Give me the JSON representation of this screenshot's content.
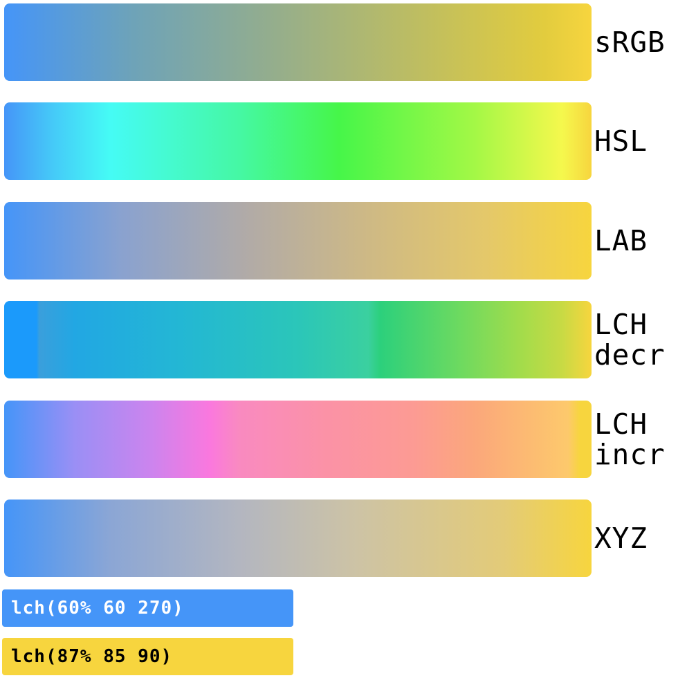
{
  "rows": [
    {
      "label": "sRGB"
    },
    {
      "label": "HSL"
    },
    {
      "label": "LAB"
    },
    {
      "label": "LCH\ndecr"
    },
    {
      "label": "LCH\nincr"
    },
    {
      "label": "XYZ"
    }
  ],
  "chips": {
    "start": {
      "text": "lch(60% 60 270)",
      "color": "#4595f8"
    },
    "end": {
      "text": "lch(87% 85 90)",
      "color": "#f7d53e"
    }
  }
}
